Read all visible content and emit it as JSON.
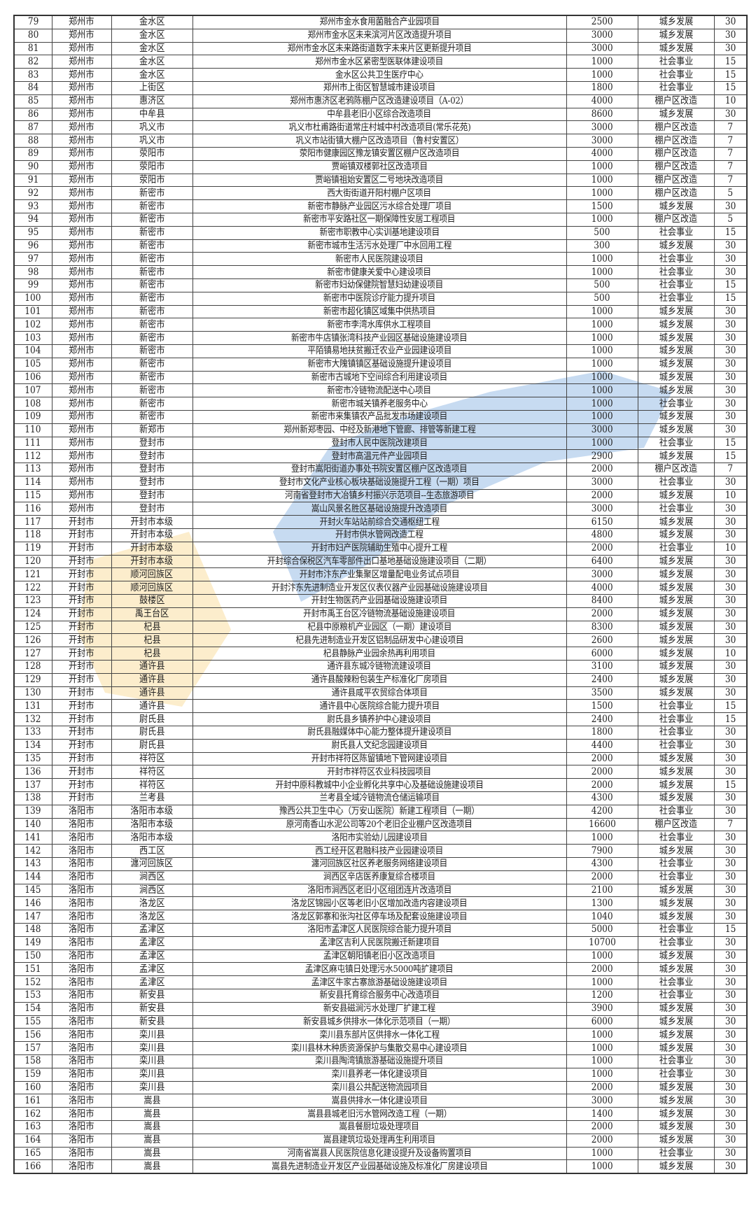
{
  "colors": {
    "text": "#222222",
    "border": "#444444",
    "watermark_blue": "#3b7fd0",
    "watermark_yellow": "#f5c24a"
  },
  "columns": [
    "no",
    "city",
    "district",
    "project",
    "amount",
    "category",
    "years"
  ],
  "rows": [
    [
      "79",
      "郑州市",
      "金水区",
      "郑州市金水食用菌融合产业园项目",
      "2500",
      "城乡发展",
      "30"
    ],
    [
      "80",
      "郑州市",
      "金水区",
      "郑州市金水区未来滨河片区改造提升项目",
      "3000",
      "城乡发展",
      "30"
    ],
    [
      "81",
      "郑州市",
      "金水区",
      "郑州市金水区未来路街道数字未来片区更新提升项目",
      "3000",
      "城乡发展",
      "30"
    ],
    [
      "82",
      "郑州市",
      "金水区",
      "郑州市金水区紧密型医联体建设项目",
      "1000",
      "社会事业",
      "15"
    ],
    [
      "83",
      "郑州市",
      "金水区",
      "金水区公共卫生医疗中心",
      "1000",
      "社会事业",
      "15"
    ],
    [
      "84",
      "郑州市",
      "上街区",
      "郑州市上街区智慧城市建设项目",
      "1800",
      "社会事业",
      "15"
    ],
    [
      "85",
      "郑州市",
      "惠济区",
      "郑州市惠济区老鸦陈棚户区改造建设项目（A-02）",
      "4000",
      "棚户区改造",
      "10"
    ],
    [
      "86",
      "郑州市",
      "中牟县",
      "中牟县老旧小区综合改造项目",
      "8600",
      "城乡发展",
      "30"
    ],
    [
      "87",
      "郑州市",
      "巩义市",
      "巩义市杜甫路街道常庄村城中村改造项目(常乐花苑)",
      "3000",
      "棚户区改造",
      "7"
    ],
    [
      "88",
      "郑州市",
      "巩义市",
      "巩义市站街镇大棚户区改造项目（鲁村安置区）",
      "3000",
      "棚户区改造",
      "7"
    ],
    [
      "89",
      "郑州市",
      "荥阳市",
      "荥阳市健康园区豫龙镇安置区棚户区改造项目",
      "4000",
      "棚户区改造",
      "7"
    ],
    [
      "90",
      "郑州市",
      "荥阳市",
      "贾峪镇双楼郭社区改造项目",
      "1000",
      "棚户区改造",
      "7"
    ],
    [
      "91",
      "郑州市",
      "荥阳市",
      "贾峪镇祖始安置区二号地块改造项目",
      "1000",
      "棚户区改造",
      "7"
    ],
    [
      "92",
      "郑州市",
      "新密市",
      "西大街街道开阳村棚户区项目",
      "1000",
      "棚户区改造",
      "5"
    ],
    [
      "93",
      "郑州市",
      "新密市",
      "新密市静脉产业园区污水综合处理厂项目",
      "1500",
      "城乡发展",
      "30"
    ],
    [
      "94",
      "郑州市",
      "新密市",
      "新密市平安路社区一期保障性安居工程项目",
      "1000",
      "棚户区改造",
      "5"
    ],
    [
      "95",
      "郑州市",
      "新密市",
      "新密市职教中心实训基地建设项目",
      "500",
      "社会事业",
      "15"
    ],
    [
      "96",
      "郑州市",
      "新密市",
      "新密市城市生活污水处理厂中水回用工程",
      "300",
      "城乡发展",
      "30"
    ],
    [
      "97",
      "郑州市",
      "新密市",
      "新密市人民医院建设项目",
      "1000",
      "社会事业",
      "30"
    ],
    [
      "98",
      "郑州市",
      "新密市",
      "新密市健康关爱中心建设项目",
      "1000",
      "社会事业",
      "30"
    ],
    [
      "99",
      "郑州市",
      "新密市",
      "新密市妇幼保健院智慧妇幼建设项目",
      "500",
      "社会事业",
      "15"
    ],
    [
      "100",
      "郑州市",
      "新密市",
      "新密市中医院诊疗能力提升项目",
      "500",
      "社会事业",
      "15"
    ],
    [
      "101",
      "郑州市",
      "新密市",
      "新密市超化镇区域集中供热项目",
      "1000",
      "城乡发展",
      "30"
    ],
    [
      "102",
      "郑州市",
      "新密市",
      "新密市李湾水库供水工程项目",
      "1000",
      "城乡发展",
      "30"
    ],
    [
      "103",
      "郑州市",
      "新密市",
      "新密市牛店镇张湾科技产业园区基础设施建设项目",
      "1000",
      "城乡发展",
      "30"
    ],
    [
      "104",
      "郑州市",
      "新密市",
      "平陌镇易地扶贫搬迁农业产业园建设项目",
      "1000",
      "城乡发展",
      "30"
    ],
    [
      "105",
      "郑州市",
      "新密市",
      "新密市大隗镇镇区基础设施提升建设项目",
      "1000",
      "城乡发展",
      "30"
    ],
    [
      "106",
      "郑州市",
      "新密市",
      "新密市古城地下空间综合利用建设项目",
      "1000",
      "城乡发展",
      "30"
    ],
    [
      "107",
      "郑州市",
      "新密市",
      "新密市冷链物流配送中心项目",
      "1000",
      "城乡发展",
      "30"
    ],
    [
      "108",
      "郑州市",
      "新密市",
      "新密市城关镇养老服务中心",
      "1000",
      "社会事业",
      "30"
    ],
    [
      "109",
      "郑州市",
      "新密市",
      "新密市来集镇农产品批发市场建设项目",
      "1000",
      "城乡发展",
      "30"
    ],
    [
      "110",
      "郑州市",
      "新郑市",
      "郑州新郑枣园、中经及新港地下管廊、排管等新建工程",
      "3000",
      "城乡发展",
      "30"
    ],
    [
      "111",
      "郑州市",
      "登封市",
      "登封市人民中医院改建项目",
      "1000",
      "社会事业",
      "15"
    ],
    [
      "112",
      "郑州市",
      "登封市",
      "登封市高温元件产业园项目",
      "2900",
      "城乡发展",
      "15"
    ],
    [
      "113",
      "郑州市",
      "登封市",
      "登封市嵩阳街道办事处书院安置区棚户区改造项目",
      "2000",
      "棚户区改造",
      "7"
    ],
    [
      "114",
      "郑州市",
      "登封市",
      "登封市文化产业核心板块基础设施提升工程（一期）项目",
      "3000",
      "社会事业",
      "30"
    ],
    [
      "115",
      "郑州市",
      "登封市",
      "河南省登封市大冶镇乡村振兴示范项目--生态旅游项目",
      "2000",
      "城乡发展",
      "10"
    ],
    [
      "116",
      "郑州市",
      "登封市",
      "嵩山风景名胜区基础设施提升改造项目",
      "3000",
      "社会事业",
      "30"
    ],
    [
      "117",
      "开封市",
      "开封市本级",
      "开封火车站站前综合交通枢纽工程",
      "6150",
      "城乡发展",
      "30"
    ],
    [
      "118",
      "开封市",
      "开封市本级",
      "开封市供水管网改造工程",
      "4800",
      "城乡发展",
      "30"
    ],
    [
      "119",
      "开封市",
      "开封市本级",
      "开封市妇产医院辅助生殖中心提升工程",
      "2000",
      "社会事业",
      "10"
    ],
    [
      "120",
      "开封市",
      "开封市本级",
      "开封综合保税区汽车零部件出口基地基础设施建设项目（二期）",
      "6400",
      "城乡发展",
      "30"
    ],
    [
      "121",
      "开封市",
      "顺河回族区",
      "开封市汴东产业集聚区增量配电业务试点项目",
      "3000",
      "城乡发展",
      "30"
    ],
    [
      "122",
      "开封市",
      "顺河回族区",
      "开封汴东先进制造业开发区仪表仪器产业园基础设施建设项目",
      "4000",
      "城乡发展",
      "30"
    ],
    [
      "123",
      "开封市",
      "鼓楼区",
      "开封生物医药产业园基础设施建设项目",
      "8400",
      "城乡发展",
      "30"
    ],
    [
      "124",
      "开封市",
      "禹王台区",
      "开封市禹王台区冷链物流基础设施建设项目",
      "2000",
      "城乡发展",
      "30"
    ],
    [
      "125",
      "开封市",
      "杞县",
      "杞县中原粮机产业园区（一期）建设项目",
      "8300",
      "城乡发展",
      "30"
    ],
    [
      "126",
      "开封市",
      "杞县",
      "杞县先进制造业开发区铝制品研发中心建设项目",
      "2600",
      "城乡发展",
      "30"
    ],
    [
      "127",
      "开封市",
      "杞县",
      "杞县静脉产业园余热再利用项目",
      "6000",
      "城乡发展",
      "10"
    ],
    [
      "128",
      "开封市",
      "通许县",
      "通许县东城冷链物流建设项目",
      "3100",
      "城乡发展",
      "30"
    ],
    [
      "129",
      "开封市",
      "通许县",
      "通许县酸辣粉包装生产标准化厂房项目",
      "2400",
      "城乡发展",
      "30"
    ],
    [
      "130",
      "开封市",
      "通许县",
      "通许县咸平农贸综合体项目",
      "3500",
      "城乡发展",
      "30"
    ],
    [
      "131",
      "开封市",
      "通许县",
      "通许县中心医院综合能力提升项目",
      "1500",
      "社会事业",
      "15"
    ],
    [
      "132",
      "开封市",
      "尉氏县",
      "尉氏县乡镇养护中心建设项目",
      "2400",
      "社会事业",
      "15"
    ],
    [
      "133",
      "开封市",
      "尉氏县",
      "尉氏县融媒体中心能力整体提升建设项目",
      "1800",
      "社会事业",
      "30"
    ],
    [
      "134",
      "开封市",
      "尉氏县",
      "尉氏县人文纪念园建设项目",
      "4400",
      "社会事业",
      "30"
    ],
    [
      "135",
      "开封市",
      "祥符区",
      "开封市祥符区陈留镇地下管网建设项目",
      "2000",
      "城乡发展",
      "30"
    ],
    [
      "136",
      "开封市",
      "祥符区",
      "开封市祥符区农业科技园项目",
      "2000",
      "城乡发展",
      "30"
    ],
    [
      "137",
      "开封市",
      "祥符区",
      "开封中原科教城中小企业孵化共享中心及基础设施建设项目",
      "2000",
      "城乡发展",
      "15"
    ],
    [
      "138",
      "开封市",
      "兰考县",
      "兰考县全域冷链物流仓储运输项目",
      "4300",
      "城乡发展",
      "30"
    ],
    [
      "139",
      "洛阳市",
      "洛阳市本级",
      "豫西公共卫生中心（万安山医院）新建工程项目（一期）",
      "4200",
      "社会事业",
      "30"
    ],
    [
      "140",
      "洛阳市",
      "洛阳市本级",
      "原河南香山水泥公司等20个老旧企业棚户区改造项目",
      "16600",
      "棚户区改造",
      "7"
    ],
    [
      "141",
      "洛阳市",
      "洛阳市本级",
      "洛阳市实验幼儿园建设项目",
      "1000",
      "社会事业",
      "30"
    ],
    [
      "142",
      "洛阳市",
      "西工区",
      "西工经开区君融科技产业园建设项目",
      "7900",
      "城乡发展",
      "30"
    ],
    [
      "143",
      "洛阳市",
      "瀍河回族区",
      "瀍河回族区社区养老服务网络建设项目",
      "4300",
      "社会事业",
      "30"
    ],
    [
      "144",
      "洛阳市",
      "涧西区",
      "涧西区辛店医养康复综合楼项目",
      "2000",
      "社会事业",
      "30"
    ],
    [
      "145",
      "洛阳市",
      "涧西区",
      "洛阳市涧西区老旧小区组团连片改造项目",
      "2100",
      "城乡发展",
      "30"
    ],
    [
      "146",
      "洛阳市",
      "洛龙区",
      "洛龙区锦园小区等老旧小区增加改造内容建设项目",
      "1300",
      "城乡发展",
      "30"
    ],
    [
      "147",
      "洛阳市",
      "洛龙区",
      "洛龙区郭寨和张沟社区停车场及配套设施建设项目",
      "1040",
      "城乡发展",
      "30"
    ],
    [
      "148",
      "洛阳市",
      "孟津区",
      "洛阳市孟津区人民医院综合能力提升项目",
      "5000",
      "社会事业",
      "15"
    ],
    [
      "149",
      "洛阳市",
      "孟津区",
      "孟津区吉利人民医院搬迁新建项目",
      "10700",
      "社会事业",
      "30"
    ],
    [
      "150",
      "洛阳市",
      "孟津区",
      "孟津区朝阳镇老旧小区改造项目",
      "1000",
      "城乡发展",
      "30"
    ],
    [
      "151",
      "洛阳市",
      "孟津区",
      "孟津区麻屯镇日处理污水5000吨扩建项目",
      "2000",
      "城乡发展",
      "30"
    ],
    [
      "152",
      "洛阳市",
      "孟津区",
      "孟津区牛家古寨旅游基础设施建设项目",
      "1000",
      "社会事业",
      "30"
    ],
    [
      "153",
      "洛阳市",
      "新安县",
      "新安县托育综合服务中心改造项目",
      "1200",
      "社会事业",
      "30"
    ],
    [
      "154",
      "洛阳市",
      "新安县",
      "新安县磁涧污水处理厂扩建工程",
      "3900",
      "城乡发展",
      "30"
    ],
    [
      "155",
      "洛阳市",
      "新安县",
      "新安县城乡供排水一体化示范项目（一期）",
      "6000",
      "城乡发展",
      "30"
    ],
    [
      "156",
      "洛阳市",
      "栾川县",
      "栾川县东部片区供排水一体化工程",
      "1000",
      "城乡发展",
      "30"
    ],
    [
      "157",
      "洛阳市",
      "栾川县",
      "栾川县林木种质资源保护与集散交易中心建设项目",
      "1000",
      "城乡发展",
      "30"
    ],
    [
      "158",
      "洛阳市",
      "栾川县",
      "栾川县陶湾镇旅游基础设施提升项目",
      "1000",
      "社会事业",
      "30"
    ],
    [
      "159",
      "洛阳市",
      "栾川县",
      "栾川县养老一体化建设项目",
      "1000",
      "社会事业",
      "30"
    ],
    [
      "160",
      "洛阳市",
      "栾川县",
      "栾川县公共配送物流园项目",
      "2000",
      "城乡发展",
      "30"
    ],
    [
      "161",
      "洛阳市",
      "嵩县",
      "嵩县供排水一体化建设项目",
      "3000",
      "城乡发展",
      "30"
    ],
    [
      "162",
      "洛阳市",
      "嵩县",
      "嵩县县城老旧污水管网改造工程（一期）",
      "1400",
      "城乡发展",
      "30"
    ],
    [
      "163",
      "洛阳市",
      "嵩县",
      "嵩县餐厨垃圾处理项目",
      "2000",
      "城乡发展",
      "30"
    ],
    [
      "164",
      "洛阳市",
      "嵩县",
      "嵩县建筑垃圾处理再生利用项目",
      "2000",
      "城乡发展",
      "30"
    ],
    [
      "165",
      "洛阳市",
      "嵩县",
      "河南省嵩县人民医院信息化建设提升及设备购置项目",
      "1000",
      "社会事业",
      "30"
    ],
    [
      "166",
      "洛阳市",
      "嵩县",
      "嵩县先进制造业开发区产业园基础设施及标准化厂房建设项目",
      "1000",
      "城乡发展",
      "30"
    ]
  ]
}
